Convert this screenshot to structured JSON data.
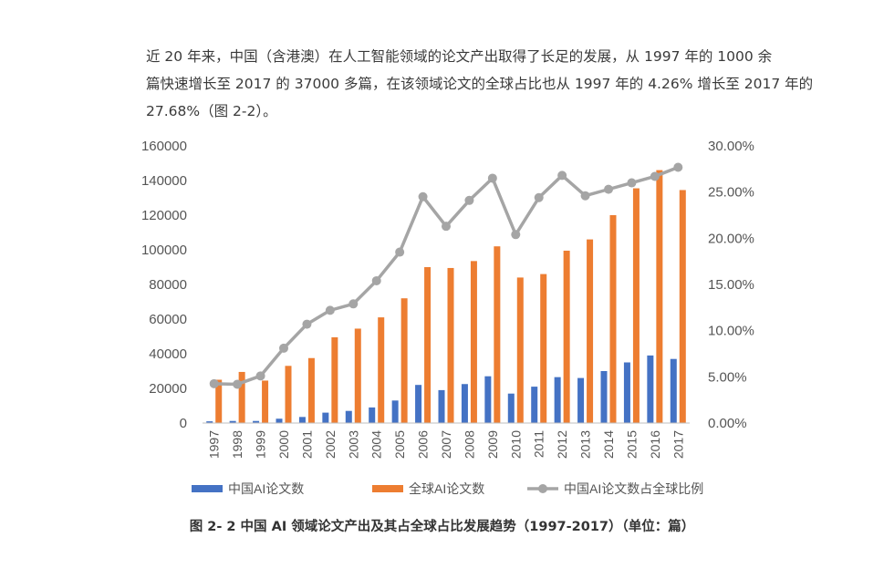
{
  "paragraph": {
    "line1": "近 20 年来，中国（含港澳）在人工智能领域的论文产出取得了长足的发展，从 1997 年的 1000 余",
    "line2": "篇快速增长至 2017 的 37000 多篇，在该领域论文的全球占比也从 1997 年的 4.26% 增长至 2017 年的",
    "line3": "27.68%（图 2-2）。"
  },
  "caption": "图 2- 2  中国 AI 领域论文产出及其占全球占比发展趋势（1997-2017）（单位：篇）",
  "chart_data": {
    "type": "bar",
    "categories": [
      "1997",
      "1998",
      "1999",
      "2000",
      "2001",
      "2002",
      "2003",
      "2004",
      "2005",
      "2006",
      "2007",
      "2008",
      "2009",
      "2010",
      "2011",
      "2012",
      "2013",
      "2014",
      "2015",
      "2016",
      "2017"
    ],
    "series": [
      {
        "name": "中国AI论文数",
        "kind": "bar",
        "axis": "left",
        "color": "#4472C4",
        "values": [
          1000,
          1200,
          1200,
          2500,
          3500,
          6000,
          7000,
          9000,
          13000,
          22000,
          19000,
          22500,
          27000,
          17000,
          21000,
          26500,
          26000,
          30000,
          35000,
          39000,
          37000
        ]
      },
      {
        "name": "全球AI论文数",
        "kind": "bar",
        "axis": "left",
        "color": "#ED7D31",
        "values": [
          25000,
          29500,
          24500,
          33000,
          37500,
          49500,
          54500,
          61000,
          72000,
          90000,
          89500,
          93500,
          102000,
          84000,
          86000,
          99500,
          106000,
          120000,
          135500,
          146000,
          134500
        ]
      },
      {
        "name": "中国AI论文数占全球比例",
        "kind": "line",
        "axis": "right",
        "color": "#A5A5A5",
        "values": [
          4.26,
          4.2,
          5.1,
          8.1,
          10.7,
          12.2,
          12.9,
          15.4,
          18.5,
          24.5,
          21.3,
          24.1,
          26.5,
          20.4,
          24.4,
          26.8,
          24.6,
          25.3,
          26.0,
          26.7,
          27.68
        ]
      }
    ],
    "yleft": {
      "ylim": [
        0,
        160000
      ],
      "ticks": [
        "0",
        "20000",
        "40000",
        "60000",
        "80000",
        "100000",
        "120000",
        "140000",
        "160000"
      ]
    },
    "yright": {
      "ylim": [
        0,
        30
      ],
      "ticks": [
        "0.00%",
        "5.00%",
        "10.00%",
        "15.00%",
        "20.00%",
        "25.00%",
        "30.00%"
      ]
    },
    "grid": false,
    "legend": "bottom"
  }
}
